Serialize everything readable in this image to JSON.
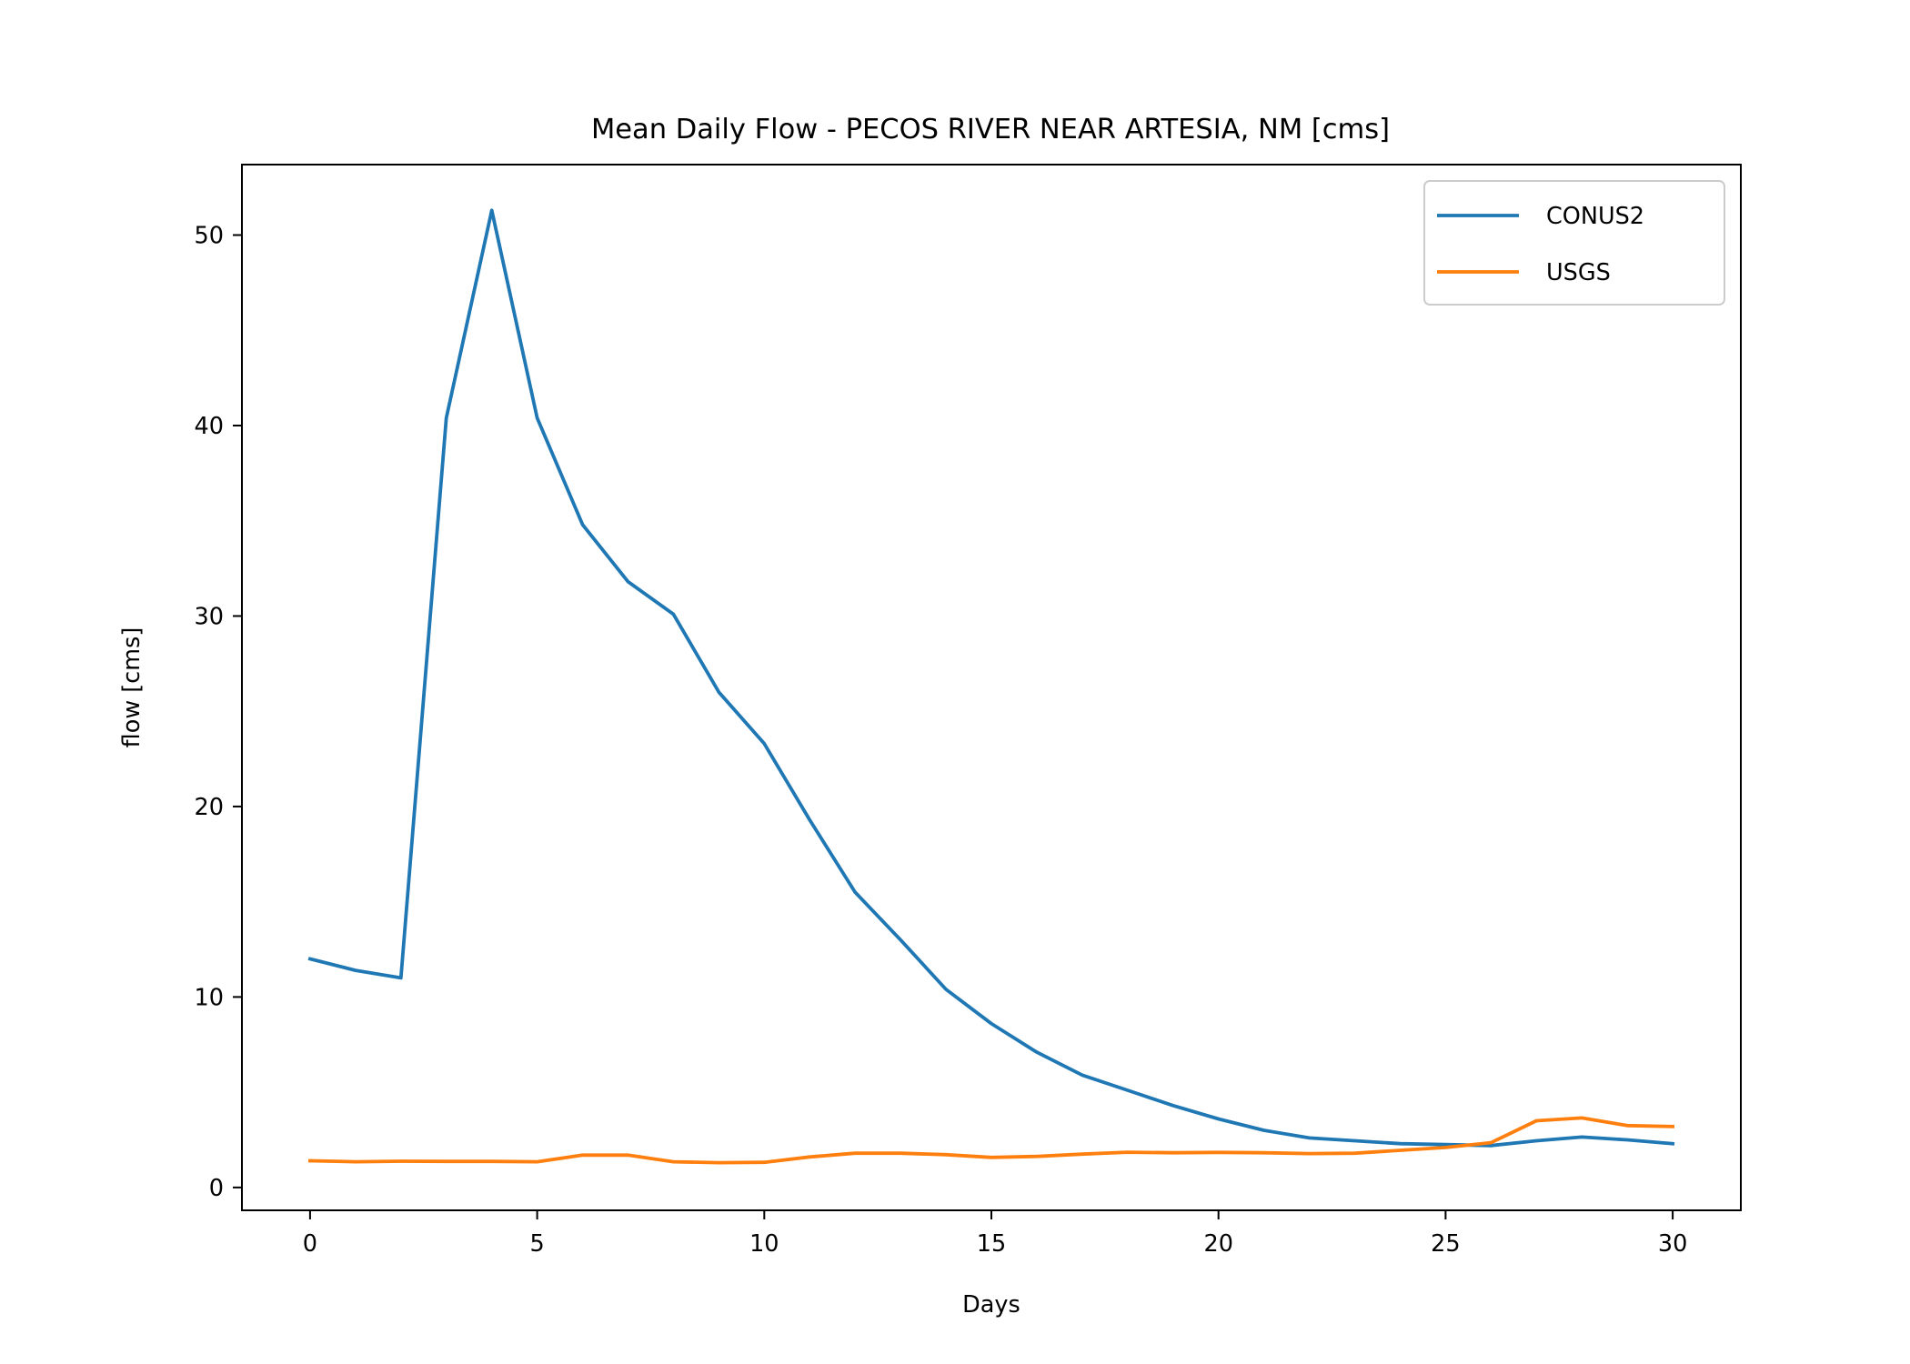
{
  "chart_data": {
    "type": "line",
    "title": "Mean Daily Flow - PECOS RIVER NEAR ARTESIA, NM [cms]",
    "xlabel": "Days",
    "ylabel": "flow [cms]",
    "xlim": [
      -1.5,
      31.5
    ],
    "ylim": [
      -1.2,
      53.7
    ],
    "xticks": [
      0,
      5,
      10,
      15,
      20,
      25,
      30
    ],
    "yticks": [
      0,
      10,
      20,
      30,
      40,
      50
    ],
    "grid": false,
    "legend_position": "upper right",
    "x": [
      0,
      1,
      2,
      3,
      4,
      5,
      6,
      7,
      8,
      9,
      10,
      11,
      12,
      13,
      14,
      15,
      16,
      17,
      18,
      19,
      20,
      21,
      22,
      23,
      24,
      25,
      26,
      27,
      28,
      29,
      30
    ],
    "series": [
      {
        "name": "CONUS2",
        "color": "#1f77b4",
        "values": [
          12.0,
          11.4,
          11.0,
          40.4,
          51.3,
          40.4,
          34.8,
          31.8,
          30.1,
          26.0,
          23.3,
          19.3,
          15.5,
          13.0,
          10.4,
          8.6,
          7.1,
          5.9,
          5.1,
          4.3,
          3.6,
          3.0,
          2.6,
          2.45,
          2.3,
          2.25,
          2.2,
          2.45,
          2.65,
          2.5,
          2.3
        ]
      },
      {
        "name": "USGS",
        "color": "#ff7f0e",
        "values": [
          1.4,
          1.35,
          1.38,
          1.37,
          1.37,
          1.35,
          1.7,
          1.7,
          1.35,
          1.3,
          1.32,
          1.6,
          1.8,
          1.8,
          1.72,
          1.58,
          1.63,
          1.75,
          1.85,
          1.82,
          1.84,
          1.82,
          1.78,
          1.8,
          1.95,
          2.1,
          2.35,
          3.5,
          3.65,
          3.25,
          3.2
        ]
      }
    ]
  }
}
